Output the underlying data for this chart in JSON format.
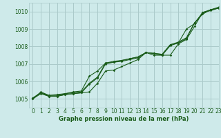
{
  "xlabel": "Graphe pression niveau de la mer (hPa)",
  "background_color": "#ceeaea",
  "grid_color": "#aacaca",
  "line_color": "#1a5c1a",
  "xlim": [
    -0.5,
    23
  ],
  "ylim": [
    1004.5,
    1010.5
  ],
  "yticks": [
    1005,
    1006,
    1007,
    1008,
    1009,
    1010
  ],
  "xticks": [
    0,
    1,
    2,
    3,
    4,
    5,
    6,
    7,
    8,
    9,
    10,
    11,
    12,
    13,
    14,
    15,
    16,
    17,
    18,
    19,
    20,
    21,
    22,
    23
  ],
  "series": [
    [
      1005.0,
      1005.3,
      1005.15,
      1005.15,
      1005.25,
      1005.3,
      1005.35,
      1005.4,
      1005.9,
      1006.6,
      1006.65,
      1006.85,
      1007.05,
      1007.25,
      1007.65,
      1007.5,
      1007.5,
      1007.5,
      1008.15,
      1008.4,
      1009.15,
      1009.95,
      1010.05,
      1010.2
    ],
    [
      1005.05,
      1005.35,
      1005.15,
      1005.15,
      1005.25,
      1005.3,
      1005.35,
      1005.85,
      1006.2,
      1007.0,
      1007.1,
      1007.15,
      1007.25,
      1007.35,
      1007.65,
      1007.6,
      1007.5,
      1008.05,
      1008.2,
      1008.45,
      1009.35,
      1009.85,
      1010.1,
      1010.25
    ],
    [
      1005.05,
      1005.35,
      1005.2,
      1005.2,
      1005.3,
      1005.35,
      1005.4,
      1005.9,
      1006.25,
      1007.05,
      1007.1,
      1007.2,
      1007.3,
      1007.4,
      1007.65,
      1007.6,
      1007.55,
      1008.1,
      1008.25,
      1008.5,
      1009.35,
      1009.9,
      1010.1,
      1010.2
    ],
    [
      1005.0,
      1005.4,
      1005.2,
      1005.25,
      1005.3,
      1005.4,
      1005.45,
      1006.3,
      1006.6,
      1007.05,
      1007.15,
      1007.2,
      1007.3,
      1007.4,
      1007.65,
      1007.6,
      1007.55,
      1008.1,
      1008.2,
      1009.0,
      1009.3,
      1009.95,
      1010.1,
      1010.2
    ]
  ]
}
